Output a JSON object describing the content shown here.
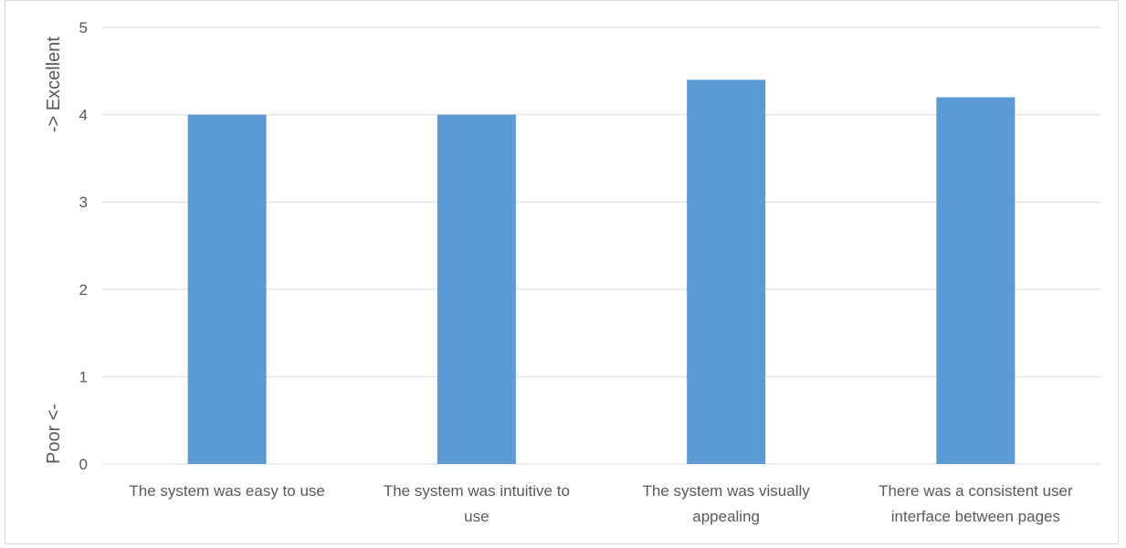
{
  "chart_data": {
    "type": "bar",
    "title": "",
    "categories": [
      [
        "The system was easy to use"
      ],
      [
        "The system was intuitive to",
        "use"
      ],
      [
        "The system was visually",
        "appealing"
      ],
      [
        "There was a consistent user",
        "interface between pages"
      ]
    ],
    "values": [
      4.0,
      4.0,
      4.4,
      4.2
    ],
    "ylim": [
      0,
      5
    ],
    "yticks": [
      0,
      1,
      2,
      3,
      4,
      5
    ],
    "ylabel_low": "Poor <-",
    "ylabel_high": "-> Excellent",
    "grid": true,
    "bar_color": "#5b9bd5",
    "grid_color": "#d9d9d9"
  }
}
